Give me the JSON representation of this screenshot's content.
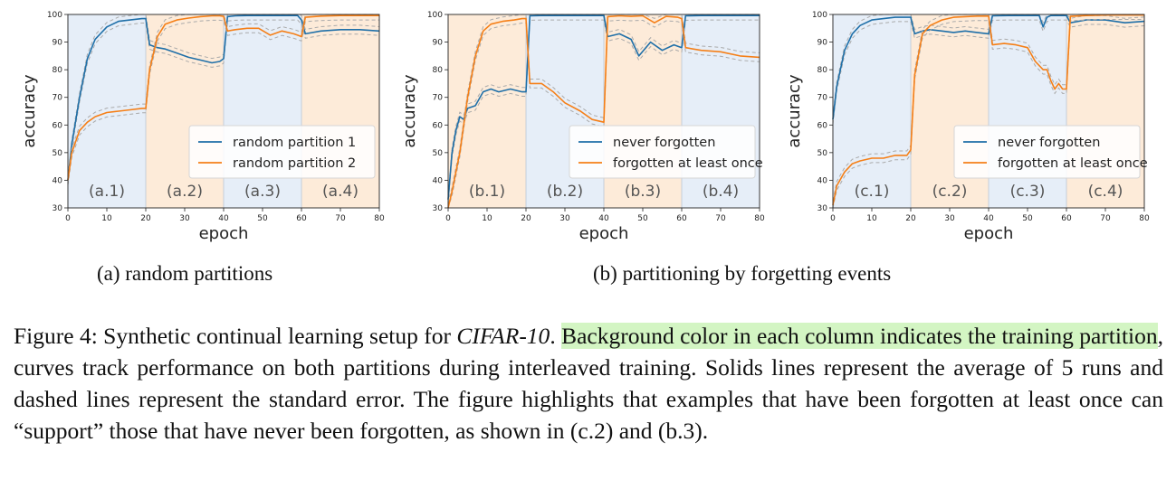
{
  "figure": {
    "number_label": "Figure 4:",
    "caption_intro": " Synthetic continual learning setup for ",
    "caption_dataset": "CIFAR-10",
    "caption_after_dataset": ". ",
    "caption_highlight": "Background color in each column indicates the training partition",
    "caption_rest": ", curves track performance on both partitions during interleaved training. Solids lines represent the average of 5 runs and dashed lines represent the standard error. The figure highlights that examples that have been forgotten at least once can “support” those that have never been forgotten, as shown in (c.2) and (b.3).",
    "subcaption_a": "(a) random partitions",
    "subcaption_b": "(b) partitioning by forgetting events"
  },
  "colors": {
    "blue": "#1f6fa8",
    "orange": "#f57f17",
    "band_blue": "#e6eef8",
    "band_orange": "#fdebd9",
    "dashed": "#aaaaaa"
  },
  "chart_data": [
    {
      "type": "line",
      "xlabel": "epoch",
      "ylabel": "accuracy",
      "xlim": [
        0,
        80
      ],
      "ylim": [
        30,
        100
      ],
      "xticks": [
        0,
        10,
        20,
        30,
        40,
        50,
        60,
        70,
        80
      ],
      "yticks": [
        30,
        40,
        50,
        60,
        70,
        80,
        90,
        100
      ],
      "legend_position": "lower-right",
      "sections": [
        {
          "label": "(a.1)",
          "from": 0,
          "to": 20,
          "partition": "blue"
        },
        {
          "label": "(a.2)",
          "from": 20,
          "to": 40,
          "partition": "orange"
        },
        {
          "label": "(a.3)",
          "from": 40,
          "to": 60,
          "partition": "blue"
        },
        {
          "label": "(a.4)",
          "from": 60,
          "to": 80,
          "partition": "orange"
        }
      ],
      "series": [
        {
          "name": "random partition 1",
          "color": "blue",
          "x": [
            0,
            1,
            3,
            5,
            7,
            10,
            13,
            16,
            19,
            20,
            21,
            23,
            25,
            28,
            31,
            34,
            37,
            39,
            40,
            41,
            43,
            46,
            49,
            52,
            55,
            58,
            59,
            60,
            61,
            65,
            70,
            75,
            80
          ],
          "y": [
            40,
            53,
            70,
            84,
            91,
            95.5,
            97.5,
            98,
            98.5,
            98.5,
            89,
            88,
            87.5,
            86,
            84.5,
            83.5,
            82.5,
            83,
            84,
            99.2,
            99.5,
            99.6,
            99.6,
            99.6,
            99.6,
            99.6,
            99.6,
            98,
            93,
            94,
            94.5,
            94.5,
            94
          ]
        },
        {
          "name": "random partition 2",
          "color": "orange",
          "x": [
            0,
            1,
            3,
            5,
            7,
            10,
            13,
            16,
            19,
            20,
            21,
            23,
            25,
            28,
            31,
            34,
            37,
            39,
            40,
            41,
            43,
            46,
            49,
            52,
            55,
            58,
            59,
            60,
            61,
            65,
            70,
            75,
            80
          ],
          "y": [
            40,
            50,
            58,
            61,
            63,
            64.5,
            65,
            65.5,
            66,
            66,
            80,
            92,
            96.5,
            98,
            98.7,
            99.2,
            99.5,
            99.5,
            99.3,
            94,
            94.5,
            95,
            95,
            92.5,
            94,
            93,
            92.5,
            92,
            99,
            99.4,
            99.6,
            99.6,
            99.6
          ]
        }
      ]
    },
    {
      "type": "line",
      "xlabel": "epoch",
      "ylabel": "accuracy",
      "xlim": [
        0,
        80
      ],
      "ylim": [
        30,
        100
      ],
      "xticks": [
        0,
        10,
        20,
        30,
        40,
        50,
        60,
        70,
        80
      ],
      "yticks": [
        30,
        40,
        50,
        60,
        70,
        80,
        90,
        100
      ],
      "legend_position": "lower-right",
      "sections": [
        {
          "label": "(b.1)",
          "from": 0,
          "to": 20,
          "partition": "orange"
        },
        {
          "label": "(b.2)",
          "from": 20,
          "to": 40,
          "partition": "blue"
        },
        {
          "label": "(b.3)",
          "from": 40,
          "to": 60,
          "partition": "orange"
        },
        {
          "label": "(b.4)",
          "from": 60,
          "to": 80,
          "partition": "blue"
        }
      ],
      "series": [
        {
          "name": "never forgotten",
          "color": "blue",
          "x": [
            0,
            1,
            2,
            3,
            4,
            5,
            7,
            9,
            11,
            13,
            16,
            19,
            20,
            21,
            24,
            28,
            32,
            36,
            40,
            41,
            44,
            47,
            49,
            52,
            55,
            58,
            60,
            61,
            65,
            70,
            75,
            80
          ],
          "y": [
            33,
            50,
            58,
            63,
            62,
            66,
            67,
            72,
            73,
            72,
            73,
            72,
            72,
            99.5,
            99.6,
            99.6,
            99.6,
            99.6,
            99.6,
            92,
            93,
            91,
            85,
            90,
            87,
            89,
            88,
            99.5,
            99.6,
            99.6,
            99.6,
            99.6
          ]
        },
        {
          "name": "forgotten at least once",
          "color": "orange",
          "x": [
            0,
            1,
            3,
            5,
            7,
            9,
            11,
            14,
            17,
            19,
            20,
            21,
            24,
            27,
            30,
            34,
            37,
            40,
            41,
            44,
            47,
            50,
            53,
            56,
            59,
            60,
            61,
            65,
            70,
            75,
            80
          ],
          "y": [
            30,
            36,
            50,
            70,
            85,
            94,
            96.5,
            97.5,
            98,
            98.5,
            98.5,
            75,
            75,
            72,
            68,
            65,
            62,
            61,
            99.2,
            99.5,
            99.3,
            99.5,
            97,
            99.3,
            99,
            98.5,
            88,
            87,
            86.5,
            85,
            84.5
          ]
        }
      ]
    },
    {
      "type": "line",
      "xlabel": "epoch",
      "ylabel": "accuracy",
      "xlim": [
        0,
        80
      ],
      "ylim": [
        30,
        100
      ],
      "xticks": [
        0,
        10,
        20,
        30,
        40,
        50,
        60,
        70,
        80
      ],
      "yticks": [
        30,
        40,
        50,
        60,
        70,
        80,
        90,
        100
      ],
      "legend_position": "lower-right",
      "sections": [
        {
          "label": "(c.1)",
          "from": 0,
          "to": 20,
          "partition": "blue"
        },
        {
          "label": "(c.2)",
          "from": 20,
          "to": 40,
          "partition": "orange"
        },
        {
          "label": "(c.3)",
          "from": 40,
          "to": 60,
          "partition": "blue"
        },
        {
          "label": "(c.4)",
          "from": 60,
          "to": 80,
          "partition": "orange"
        }
      ],
      "series": [
        {
          "name": "never forgotten",
          "color": "blue",
          "x": [
            0,
            1,
            3,
            5,
            7,
            10,
            13,
            16,
            19,
            20,
            21,
            23,
            25,
            28,
            31,
            34,
            37,
            40,
            41,
            45,
            50,
            53,
            54,
            55,
            56,
            57,
            59,
            60,
            61,
            65,
            70,
            75,
            80
          ],
          "y": [
            62,
            74,
            87,
            93,
            96,
            98,
            98.5,
            99,
            99,
            99,
            93,
            94,
            94.5,
            94,
            93.5,
            94,
            93.5,
            93,
            99.5,
            99.6,
            99.6,
            99.6,
            95.5,
            99,
            99.6,
            99.6,
            99.6,
            99.6,
            97,
            98,
            98,
            97,
            97.5
          ]
        },
        {
          "name": "forgotten at least once",
          "color": "orange",
          "x": [
            0,
            1,
            3,
            5,
            7,
            10,
            13,
            16,
            19,
            20,
            21,
            23,
            25,
            28,
            31,
            34,
            37,
            40,
            41,
            44,
            47,
            50,
            52,
            54,
            55,
            56,
            57,
            58,
            59,
            60,
            61,
            65,
            70,
            75,
            80
          ],
          "y": [
            31,
            38,
            43,
            46,
            47,
            48,
            48,
            49,
            49,
            51,
            78,
            93,
            96,
            98,
            99,
            99.2,
            99.4,
            99.4,
            89,
            89.5,
            89,
            88,
            83,
            80,
            80,
            76,
            73,
            75,
            73,
            73,
            99.3,
            99.6,
            99.8,
            99.8,
            99.8
          ]
        }
      ]
    }
  ]
}
